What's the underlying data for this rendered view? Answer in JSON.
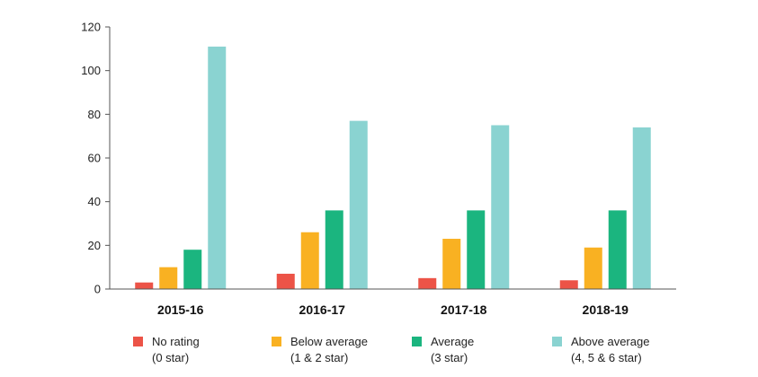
{
  "chart_data": {
    "type": "bar",
    "categories": [
      "2015-16",
      "2016-17",
      "2017-18",
      "2018-19"
    ],
    "series": [
      {
        "name": "No rating",
        "sub": "(0 star)",
        "color": "#ec5347",
        "values": [
          3,
          7,
          5,
          4
        ]
      },
      {
        "name": "Below average",
        "sub": "(1 & 2 star)",
        "color": "#f9b122",
        "values": [
          10,
          26,
          23,
          19
        ]
      },
      {
        "name": "Average",
        "sub": "(3 star)",
        "color": "#1bb57f",
        "values": [
          18,
          36,
          36,
          36
        ]
      },
      {
        "name": "Above average",
        "sub": "(4, 5 & 6 star)",
        "color": "#8ad3d1",
        "values": [
          111,
          77,
          75,
          74
        ]
      }
    ],
    "ylim": [
      0,
      120
    ],
    "yticks": [
      0,
      20,
      40,
      60,
      80,
      100,
      120
    ],
    "title": "",
    "xlabel": "",
    "ylabel": "",
    "grid": false,
    "legend": "bottom"
  }
}
